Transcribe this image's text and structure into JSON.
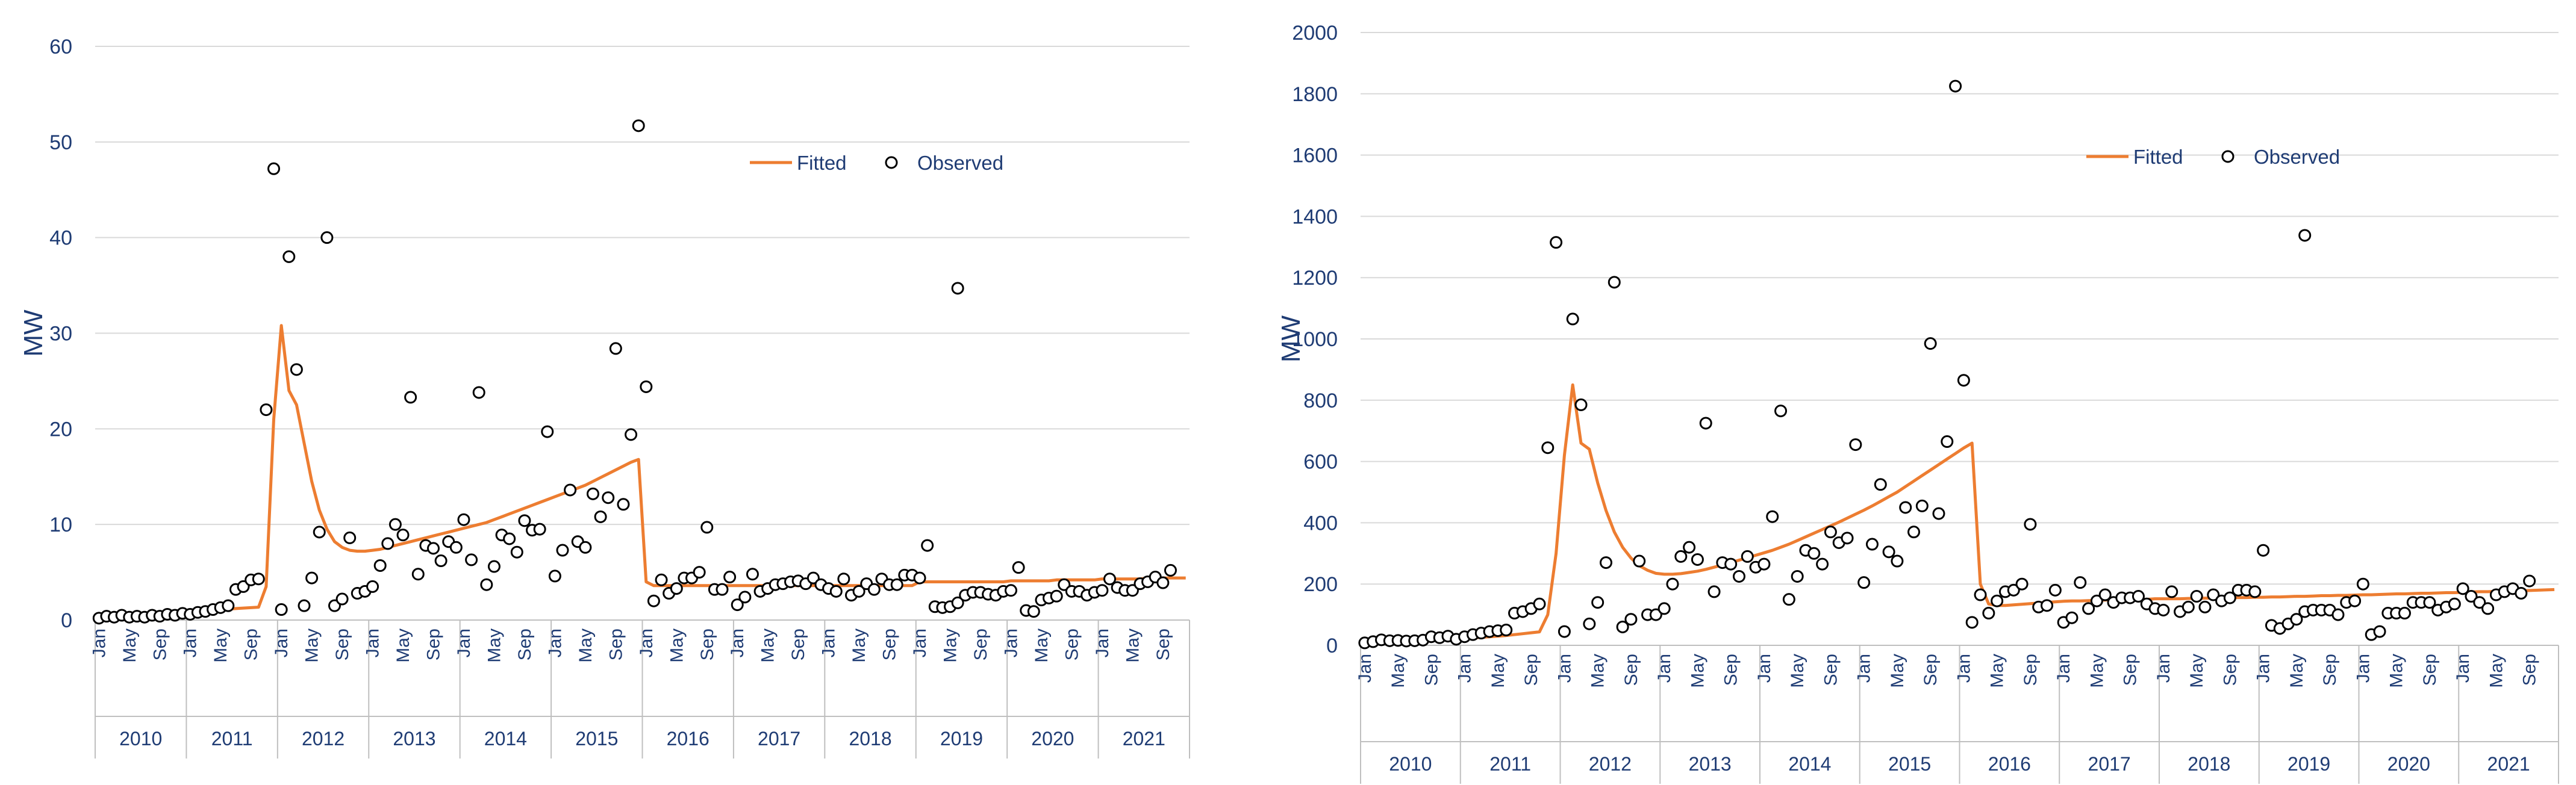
{
  "chart_data": [
    {
      "type": "line",
      "ylabel": "MW",
      "ylim": [
        0,
        60
      ],
      "yticks": [
        "0",
        "10",
        "20",
        "30",
        "40",
        "50",
        "60"
      ],
      "grid": true,
      "legend_position": "top-right",
      "month_labels": [
        "Jan",
        "May",
        "Sep"
      ],
      "years": [
        "2010",
        "2011",
        "2012",
        "2013",
        "2014",
        "2015",
        "2016",
        "2017",
        "2018",
        "2019",
        "2020",
        "2021"
      ],
      "series": [
        {
          "name": "Fitted",
          "style": "line",
          "color": "#ed7d31",
          "values": [
            0.3,
            0.35,
            0.4,
            0.45,
            0.5,
            0.55,
            0.6,
            0.65,
            0.7,
            0.75,
            0.8,
            0.85,
            0.9,
            0.95,
            1.0,
            1.05,
            1.1,
            1.15,
            1.2,
            1.25,
            1.3,
            1.35,
            3.5,
            21,
            30.8,
            24,
            22.5,
            18.5,
            14.5,
            11.5,
            9.5,
            8.2,
            7.6,
            7.3,
            7.2,
            7.2,
            7.3,
            7.4,
            7.6,
            7.8,
            8.0,
            8.2,
            8.4,
            8.6,
            8.8,
            9.0,
            9.2,
            9.4,
            9.6,
            9.8,
            10.0,
            10.2,
            10.5,
            10.8,
            11.1,
            11.4,
            11.7,
            12.0,
            12.3,
            12.6,
            12.9,
            13.2,
            13.5,
            13.8,
            14.1,
            14.5,
            14.9,
            15.3,
            15.7,
            16.1,
            16.5,
            16.8,
            4.0,
            3.6,
            3.6,
            3.6,
            3.6,
            3.6,
            3.6,
            3.6,
            3.6,
            3.6,
            3.6,
            3.6,
            3.6,
            3.6,
            3.6,
            3.6,
            3.6,
            3.6,
            3.6,
            3.6,
            3.6,
            3.6,
            3.6,
            3.6,
            3.6,
            3.6,
            3.6,
            3.6,
            3.6,
            3.6,
            3.6,
            3.6,
            3.6,
            3.6,
            3.6,
            3.6,
            4.0,
            4.0,
            4.0,
            4.0,
            4.0,
            4.0,
            4.0,
            4.0,
            4.0,
            4.0,
            4.0,
            4.0,
            4.1,
            4.1,
            4.1,
            4.1,
            4.1,
            4.1,
            4.2,
            4.2,
            4.2,
            4.2,
            4.2,
            4.2,
            4.3,
            4.3,
            4.3,
            4.3,
            4.3,
            4.3,
            4.4,
            4.4,
            4.4,
            4.4,
            4.4,
            4.4
          ]
        },
        {
          "name": "Observed",
          "style": "marker",
          "color": "#000000",
          "values": [
            0.2,
            0.4,
            0.3,
            0.5,
            0.3,
            0.4,
            0.3,
            0.5,
            0.4,
            0.6,
            0.5,
            0.7,
            0.6,
            0.8,
            0.9,
            1.1,
            1.3,
            1.5,
            3.2,
            3.5,
            4.2,
            4.3,
            22,
            47.2,
            1.1,
            38,
            26.2,
            1.5,
            4.4,
            9.2,
            40,
            1.5,
            2.2,
            8.6,
            2.8,
            3.0,
            3.5,
            5.7,
            8.0,
            10.0,
            8.9,
            23.3,
            4.8,
            7.8,
            7.5,
            6.2,
            8.2,
            7.6,
            10.5,
            6.3,
            23.8,
            3.7,
            5.6,
            8.9,
            8.5,
            7.1,
            10.4,
            9.4,
            9.5,
            19.7,
            4.6,
            7.3,
            13.6,
            8.2,
            7.6,
            13.2,
            10.8,
            12.8,
            28.4,
            12.1,
            19.4,
            51.7,
            24.4,
            2.0,
            4.2,
            2.8,
            3.3,
            4.4,
            4.4,
            5.0,
            9.7,
            3.2,
            3.2,
            4.5,
            1.6,
            2.4,
            4.8,
            3.0,
            3.3,
            3.7,
            3.8,
            4.0,
            4.1,
            3.8,
            4.4,
            3.7,
            3.3,
            3.0,
            4.3,
            2.6,
            3.0,
            3.8,
            3.2,
            4.3,
            3.7,
            3.7,
            4.7,
            4.7,
            4.4,
            7.8,
            1.4,
            1.3,
            1.4,
            1.8,
            2.6,
            2.9,
            2.9,
            2.7,
            2.6,
            3.0,
            3.1,
            5.5,
            1.0,
            0.9,
            2.1,
            2.3,
            2.5,
            3.7,
            3.0,
            3.0,
            2.6,
            2.9,
            3.1,
            4.3,
            3.4,
            3.1,
            3.1,
            3.8,
            4.0,
            4.5,
            3.9,
            5.2
          ]
        }
      ],
      "extra_points": [
        {
          "x": 113,
          "y": 34.7
        }
      ]
    },
    {
      "type": "line",
      "ylabel": "MW",
      "ylim": [
        0,
        2000
      ],
      "yticks": [
        "0",
        "200",
        "400",
        "600",
        "800",
        "1000",
        "1200",
        "1400",
        "1600",
        "1800",
        "2000"
      ],
      "grid": true,
      "legend_position": "top-right",
      "month_labels": [
        "Jan",
        "May",
        "Sep"
      ],
      "years": [
        "2010",
        "2011",
        "2012",
        "2013",
        "2014",
        "2015",
        "2016",
        "2017",
        "2018",
        "2019",
        "2020",
        "2021"
      ],
      "series": [
        {
          "name": "Fitted",
          "style": "line",
          "color": "#ed7d31",
          "values": [
            10,
            11,
            12,
            13,
            14,
            15,
            16,
            17,
            18,
            19,
            20,
            21,
            22,
            24,
            26,
            28,
            30,
            32,
            35,
            38,
            41,
            44,
            100,
            300,
            620,
            850,
            660,
            640,
            530,
            440,
            370,
            320,
            285,
            260,
            245,
            235,
            232,
            232,
            234,
            238,
            242,
            248,
            255,
            262,
            270,
            278,
            286,
            294,
            302,
            310,
            320,
            330,
            342,
            354,
            366,
            378,
            390,
            402,
            415,
            428,
            441,
            455,
            470,
            485,
            500,
            518,
            536,
            554,
            572,
            590,
            608,
            626,
            644,
            660,
            200,
            135,
            130,
            130,
            132,
            134,
            136,
            138,
            140,
            142,
            144,
            145,
            145,
            146,
            147,
            148,
            149,
            150,
            150,
            150,
            150,
            152,
            152,
            152,
            152,
            153,
            153,
            154,
            154,
            155,
            155,
            156,
            156,
            157,
            157,
            158,
            158,
            159,
            160,
            160,
            161,
            162,
            162,
            163,
            163,
            164,
            165,
            165,
            166,
            167,
            168,
            168,
            169,
            170,
            170,
            171,
            172,
            172,
            173,
            174,
            175,
            175,
            176,
            177,
            178,
            178,
            179,
            180,
            181,
            182
          ]
        },
        {
          "name": "Observed",
          "style": "marker",
          "color": "#000000",
          "values": [
            8,
            12,
            18,
            15,
            16,
            14,
            15,
            17,
            28,
            25,
            30,
            20,
            28,
            35,
            40,
            45,
            48,
            50,
            105,
            110,
            120,
            135,
            645,
            1315,
            45,
            1065,
            785,
            70,
            140,
            270,
            1185,
            60,
            85,
            275,
            100,
            100,
            120,
            200,
            290,
            320,
            280,
            725,
            175,
            270,
            265,
            225,
            290,
            255,
            265,
            420,
            765,
            150,
            225,
            310,
            300,
            265,
            370,
            335,
            350,
            655,
            205,
            330,
            525,
            305,
            275,
            450,
            370,
            455,
            985,
            430,
            665,
            1825,
            865,
            75,
            165,
            105,
            145,
            175,
            180,
            200,
            395,
            125,
            130,
            180,
            75,
            90,
            205,
            120,
            145,
            165,
            140,
            155,
            155,
            160,
            135,
            120,
            115,
            175,
            110,
            125,
            160,
            125,
            165,
            145,
            155,
            180,
            180,
            175,
            310,
            65,
            55,
            70,
            85,
            110,
            115,
            115,
            115,
            100,
            140,
            145,
            200,
            35,
            45,
            105,
            105,
            105,
            140,
            140,
            140,
            115,
            125,
            135,
            185,
            160,
            140,
            120,
            165,
            175,
            185,
            170,
            210
          ]
        }
      ],
      "extra_points": [
        {
          "x": 113,
          "y": 1338
        }
      ]
    }
  ]
}
